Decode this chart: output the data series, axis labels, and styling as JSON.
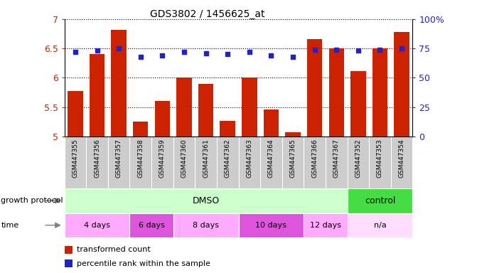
{
  "title": "GDS3802 / 1456625_at",
  "samples": [
    "GSM447355",
    "GSM447356",
    "GSM447357",
    "GSM447358",
    "GSM447359",
    "GSM447360",
    "GSM447361",
    "GSM447362",
    "GSM447363",
    "GSM447364",
    "GSM447365",
    "GSM447366",
    "GSM447367",
    "GSM447352",
    "GSM447353",
    "GSM447354"
  ],
  "transformed_count": [
    5.77,
    6.4,
    6.82,
    5.25,
    5.6,
    6.0,
    5.9,
    5.27,
    6.0,
    5.46,
    5.07,
    6.66,
    6.5,
    6.12,
    6.5,
    6.78
  ],
  "percentile_rank": [
    72,
    73,
    75,
    68,
    69,
    72,
    71,
    70,
    72,
    69,
    68,
    74,
    74,
    73,
    74,
    75
  ],
  "ylim_left": [
    5.0,
    7.0
  ],
  "ylim_right": [
    0,
    100
  ],
  "yticks_left": [
    5.0,
    5.5,
    6.0,
    6.5,
    7.0
  ],
  "yticks_right": [
    0,
    25,
    50,
    75,
    100
  ],
  "bar_color": "#cc2200",
  "dot_color": "#2222cc",
  "bar_width": 0.7,
  "dmso_color": "#ccffcc",
  "control_color": "#44dd44",
  "time_color_1": "#ffaaff",
  "time_color_2": "#dd55dd",
  "na_color": "#ffddff",
  "sample_bg_color": "#cccccc",
  "legend_bar_label": "transformed count",
  "legend_dot_label": "percentile rank within the sample",
  "row_label_growth": "growth protocol",
  "row_label_time": "time"
}
